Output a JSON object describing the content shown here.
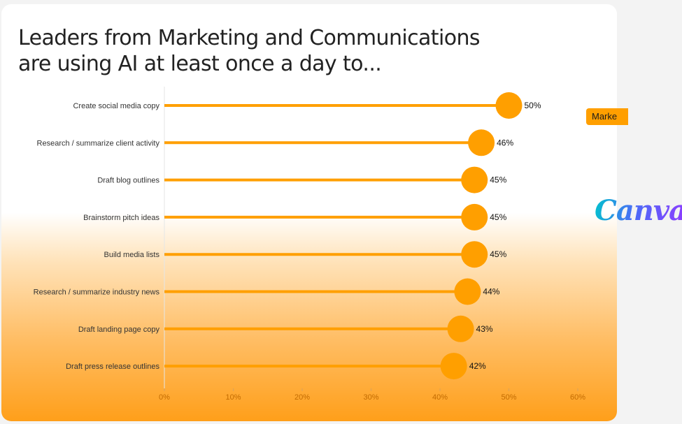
{
  "title_lines": [
    "Leaders from Marketing and Communications",
    "are using AI at least once a day to..."
  ],
  "side_tag": "Marke",
  "brand_logo_text": "Canva",
  "colors": {
    "accent": "#ff9f00",
    "text": "#222222",
    "axis_text": "#c26b00"
  },
  "chart_data": {
    "type": "bar",
    "orientation": "horizontal",
    "style": "lollipop",
    "title": "Leaders from Marketing and Communications are using AI at least once a day to...",
    "categories": [
      "Create social media copy",
      "Research / summarize client activity",
      "Draft blog outlines",
      "Brainstorm pitch ideas",
      "Build media lists",
      "Research / summarize industry news",
      "Draft landing page copy",
      "Draft press release outlines"
    ],
    "values": [
      50,
      46,
      45,
      45,
      45,
      44,
      43,
      42
    ],
    "data_labels": [
      "50%",
      "46%",
      "45%",
      "45%",
      "45%",
      "44%",
      "43%",
      "42%"
    ],
    "xlim": [
      0,
      60
    ],
    "x_ticks": [
      "0%",
      "10%",
      "20%",
      "30%",
      "40%",
      "50%",
      "60%"
    ],
    "xlabel": "",
    "ylabel": "",
    "grid": false,
    "legend": "none"
  }
}
